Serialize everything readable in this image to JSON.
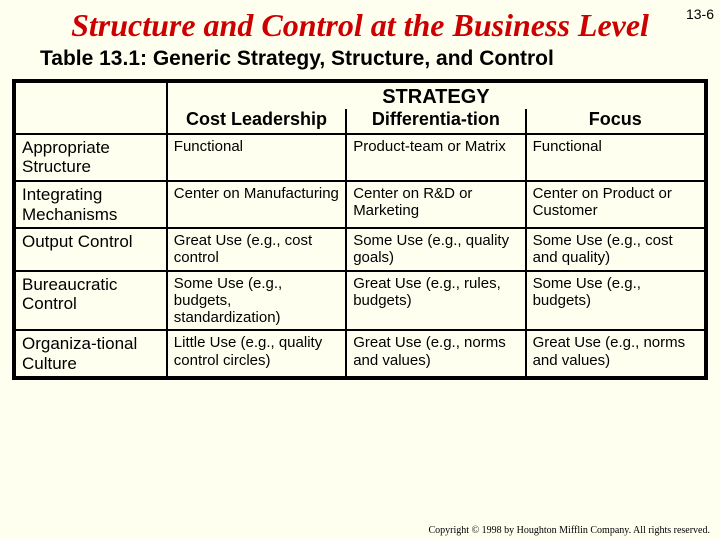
{
  "pageNumber": "13-6",
  "title": "Structure and Control at the Business Level",
  "subtitle": "Table 13.1:  Generic Strategy, Structure, and Control",
  "headers": {
    "strategy": "STRATEGY",
    "cols": [
      "Cost Leadership",
      "Differentia-tion",
      "Focus"
    ]
  },
  "rows": [
    {
      "label": "Appropriate Structure",
      "cells": [
        "Functional",
        "Product-team or Matrix",
        "Functional"
      ]
    },
    {
      "label": "Integrating Mechanisms",
      "cells": [
        "Center on Manufacturing",
        "Center on R&D or Marketing",
        "Center on Product or Customer"
      ]
    },
    {
      "label": "Output Control",
      "cells": [
        "Great Use (e.g., cost control",
        "Some Use (e.g., quality goals)",
        "Some Use (e.g., cost and quality)"
      ]
    },
    {
      "label": "Bureaucratic Control",
      "cells": [
        "Some Use (e.g., budgets, standardization)",
        "Great Use (e.g., rules, budgets)",
        "Some Use (e.g., budgets)"
      ]
    },
    {
      "label": "Organiza-tional Culture",
      "cells": [
        "Little Use (e.g., quality control circles)",
        "Great Use (e.g., norms and values)",
        "Great Use (e.g., norms and values)"
      ]
    }
  ],
  "copyright": "Copyright © 1998 by Houghton Mifflin Company.  All rights reserved."
}
